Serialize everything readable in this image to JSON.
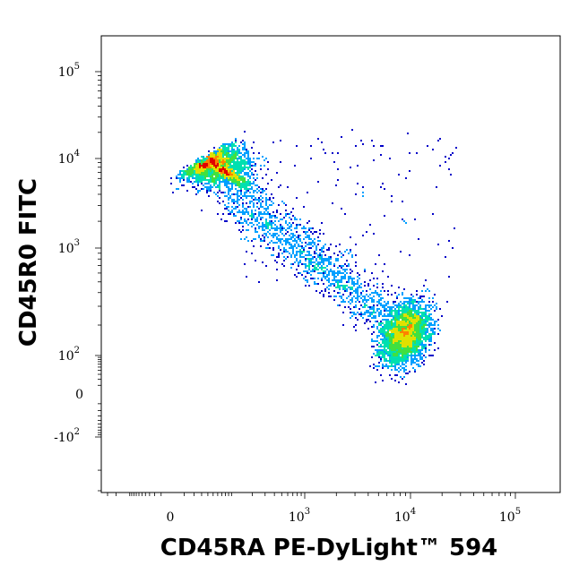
{
  "chart_data": {
    "type": "scatter",
    "subtype": "flow-cytometry density dot plot",
    "title": "",
    "xlabel": "CD45RA PE-DyLight™ 594",
    "ylabel": "CD45R0 FITC",
    "x_scale": "biexponential (logicle)",
    "y_scale": "biexponential (logicle)",
    "xlim": [
      -300,
      200000
    ],
    "ylim": [
      -300,
      200000
    ],
    "grid": false,
    "legend": "none",
    "density_colors": [
      "#0000c8",
      "#00a0ff",
      "#00e0b0",
      "#40e040",
      "#e0e000",
      "#ff8000",
      "#e00000"
    ],
    "x_ticks": [
      {
        "base": "0",
        "exp": "",
        "value": 0
      },
      {
        "base": "10",
        "exp": "3",
        "value": 1000
      },
      {
        "base": "10",
        "exp": "4",
        "value": 10000
      },
      {
        "base": "10",
        "exp": "5",
        "value": 100000
      }
    ],
    "y_ticks": [
      {
        "base": "10",
        "exp": "5",
        "value": 100000
      },
      {
        "base": "10",
        "exp": "4",
        "value": 10000
      },
      {
        "base": "10",
        "exp": "3",
        "value": 1000
      },
      {
        "base": "10",
        "exp": "2",
        "value": 100
      },
      {
        "base": "0",
        "exp": "",
        "value": 0
      },
      {
        "base": "-10",
        "exp": "2",
        "value": -100
      }
    ],
    "populations": [
      {
        "name": "",
        "x_center": 10,
        "y_center": 9000,
        "approx_events": 2600
      },
      {
        "name": "",
        "x_center": 9000,
        "y_center": 130,
        "approx_events": 2600
      },
      {
        "name": "",
        "x_center": 800,
        "y_center": 1000,
        "approx_events": 1500
      }
    ]
  }
}
